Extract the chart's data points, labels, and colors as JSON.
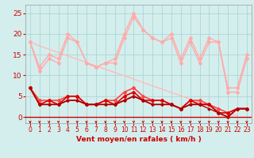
{
  "title": "",
  "xlabel": "Vent moyen/en rafales ( km/h )",
  "background_color": "#d4eeed",
  "grid_color": "#a8d8d4",
  "xlim": [
    -0.5,
    23.5
  ],
  "ylim": [
    -1.5,
    27
  ],
  "yticks": [
    0,
    5,
    10,
    15,
    20,
    25
  ],
  "xticks": [
    0,
    1,
    2,
    3,
    4,
    5,
    6,
    7,
    8,
    9,
    10,
    11,
    12,
    13,
    14,
    15,
    16,
    17,
    18,
    19,
    20,
    21,
    22,
    23
  ],
  "series": [
    {
      "name": "rafales_max",
      "color": "#ffaaaa",
      "lw": 1.0,
      "marker": "D",
      "ms": 2.0,
      "values": [
        18,
        12,
        15,
        14,
        20,
        18,
        13,
        12,
        13,
        14,
        20,
        25,
        21,
        19,
        18,
        20,
        14,
        19,
        14,
        19,
        18,
        7,
        7,
        15
      ]
    },
    {
      "name": "rafales_min",
      "color": "#ffaaaa",
      "lw": 1.0,
      "marker": "D",
      "ms": 2.0,
      "values": [
        18,
        11,
        14,
        13,
        19,
        18,
        13,
        12,
        13,
        13,
        19,
        24,
        21,
        19,
        18,
        19,
        13,
        18,
        13,
        18,
        18,
        6,
        6,
        14
      ]
    },
    {
      "name": "trend_line",
      "color": "#ffbbbb",
      "lw": 1.0,
      "marker": null,
      "ms": 0,
      "values": [
        18.0,
        17.1,
        16.3,
        15.5,
        14.7,
        13.9,
        13.1,
        12.3,
        11.5,
        10.7,
        9.9,
        9.1,
        8.3,
        7.5,
        6.7,
        5.9,
        5.1,
        4.3,
        3.5,
        2.7,
        1.9,
        1.1,
        0.3,
        null
      ]
    },
    {
      "name": "vent_max",
      "color": "#ff4444",
      "lw": 1.2,
      "marker": "D",
      "ms": 2.0,
      "values": [
        7,
        4,
        4,
        4,
        5,
        5,
        3,
        3,
        4,
        4,
        6,
        7,
        5,
        4,
        4,
        3,
        2,
        4,
        4,
        3,
        2,
        1,
        2,
        2
      ]
    },
    {
      "name": "vent_mid",
      "color": "#dd0000",
      "lw": 1.2,
      "marker": "D",
      "ms": 2.0,
      "values": [
        7,
        3,
        4,
        3,
        5,
        5,
        3,
        3,
        4,
        3,
        5,
        6,
        4,
        4,
        4,
        3,
        2,
        4,
        3,
        3,
        1,
        1,
        2,
        2
      ]
    },
    {
      "name": "vent_low1",
      "color": "#cc0000",
      "lw": 1.2,
      "marker": "D",
      "ms": 1.8,
      "values": [
        7,
        3,
        3,
        3,
        4,
        4,
        3,
        3,
        3,
        3,
        4,
        5,
        4,
        3,
        3,
        3,
        2,
        3,
        3,
        3,
        1,
        0,
        2,
        2
      ]
    },
    {
      "name": "vent_low2",
      "color": "#aa0000",
      "lw": 1.0,
      "marker": "D",
      "ms": 1.5,
      "values": [
        7,
        3,
        3,
        3,
        4,
        4,
        3,
        3,
        3,
        3,
        4,
        5,
        4,
        3,
        3,
        3,
        2,
        3,
        3,
        2,
        1,
        0,
        2,
        2
      ]
    }
  ],
  "arrow_color": "#cc0000",
  "xlabel_color": "#cc0000",
  "xlabel_fontsize": 6.5,
  "tick_color": "#cc0000",
  "tick_fontsize": 5.5,
  "ytick_fontsize": 6.5,
  "ytick_color": "#cc0000",
  "hline_color": "#cc0000",
  "hline_lw": 1.0
}
